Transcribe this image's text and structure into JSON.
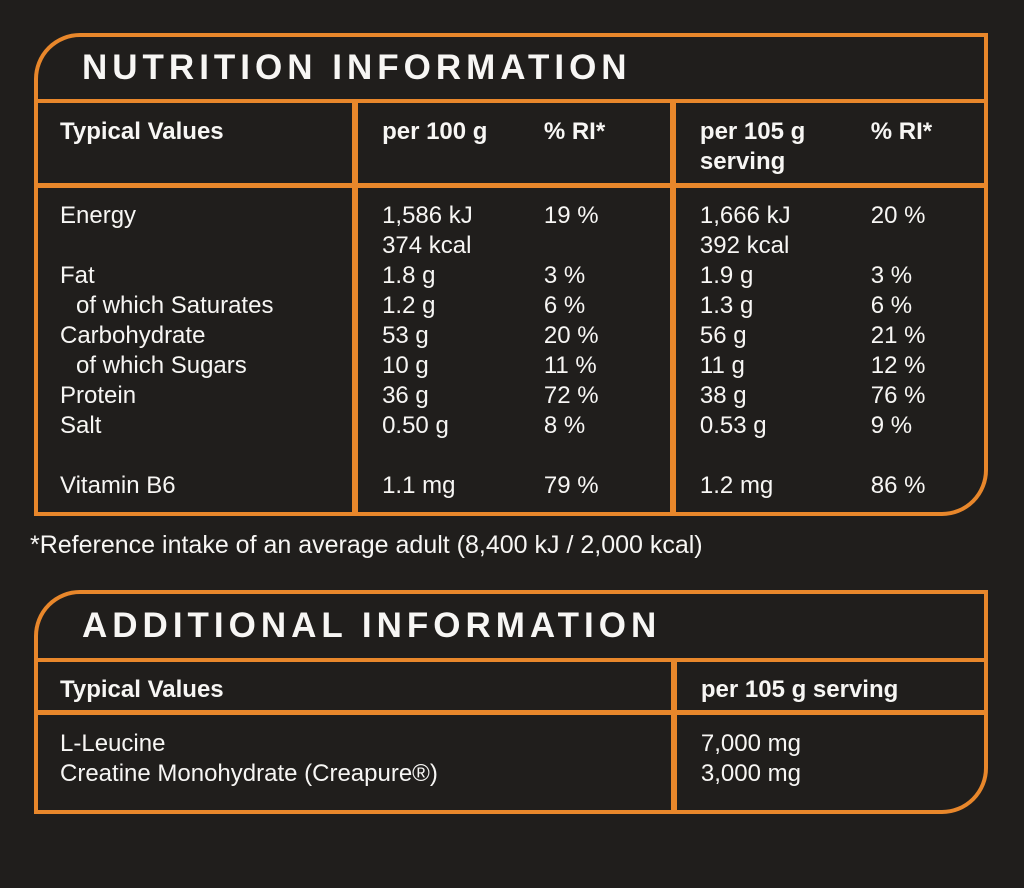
{
  "colors": {
    "accent": "#e8872b",
    "background": "#201e1c",
    "text": "#f7f6f4"
  },
  "nutrition_panel": {
    "title": "NUTRITION INFORMATION",
    "header": {
      "typical_values": "Typical Values",
      "per_100g": "per 100 g",
      "ri_100g": "% RI*",
      "per_105g": "per 105 g\nserving",
      "ri_105g": "% RI*"
    },
    "rows": [
      {
        "label": "Energy",
        "indent": false,
        "spacer_before": false,
        "per_100g": "1,586 kJ\n374 kcal",
        "ri_100g": "19 %",
        "per_105g": "1,666 kJ\n392 kcal",
        "ri_105g": "20 %"
      },
      {
        "label": "Fat",
        "indent": false,
        "spacer_before": false,
        "per_100g": "1.8 g",
        "ri_100g": "3 %",
        "per_105g": "1.9 g",
        "ri_105g": "3 %"
      },
      {
        "label": "of which Saturates",
        "indent": true,
        "spacer_before": false,
        "per_100g": "1.2 g",
        "ri_100g": "6 %",
        "per_105g": "1.3 g",
        "ri_105g": "6 %"
      },
      {
        "label": "Carbohydrate",
        "indent": false,
        "spacer_before": false,
        "per_100g": "53 g",
        "ri_100g": "20 %",
        "per_105g": "56 g",
        "ri_105g": "21 %"
      },
      {
        "label": "of which Sugars",
        "indent": true,
        "spacer_before": false,
        "per_100g": "10 g",
        "ri_100g": "11 %",
        "per_105g": "11 g",
        "ri_105g": "12 %"
      },
      {
        "label": "Protein",
        "indent": false,
        "spacer_before": false,
        "per_100g": "36 g",
        "ri_100g": "72 %",
        "per_105g": "38 g",
        "ri_105g": "76 %"
      },
      {
        "label": "Salt",
        "indent": false,
        "spacer_before": false,
        "per_100g": "0.50 g",
        "ri_100g": "8 %",
        "per_105g": "0.53 g",
        "ri_105g": "9 %"
      },
      {
        "label": "Vitamin B6",
        "indent": false,
        "spacer_before": true,
        "per_100g": "1.1 mg",
        "ri_100g": "79 %",
        "per_105g": "1.2 mg",
        "ri_105g": "86 %"
      }
    ]
  },
  "footnote": "*Reference intake of an average adult (8,400 kJ / 2,000 kcal)",
  "additional_panel": {
    "title": "ADDITIONAL INFORMATION",
    "header": {
      "typical_values": "Typical Values",
      "per_105g_serving": "per 105 g serving"
    },
    "rows": [
      {
        "label": "L-Leucine",
        "value": "7,000 mg"
      },
      {
        "label": "Creatine Monohydrate (Creapure®)",
        "value": "3,000 mg"
      }
    ]
  }
}
